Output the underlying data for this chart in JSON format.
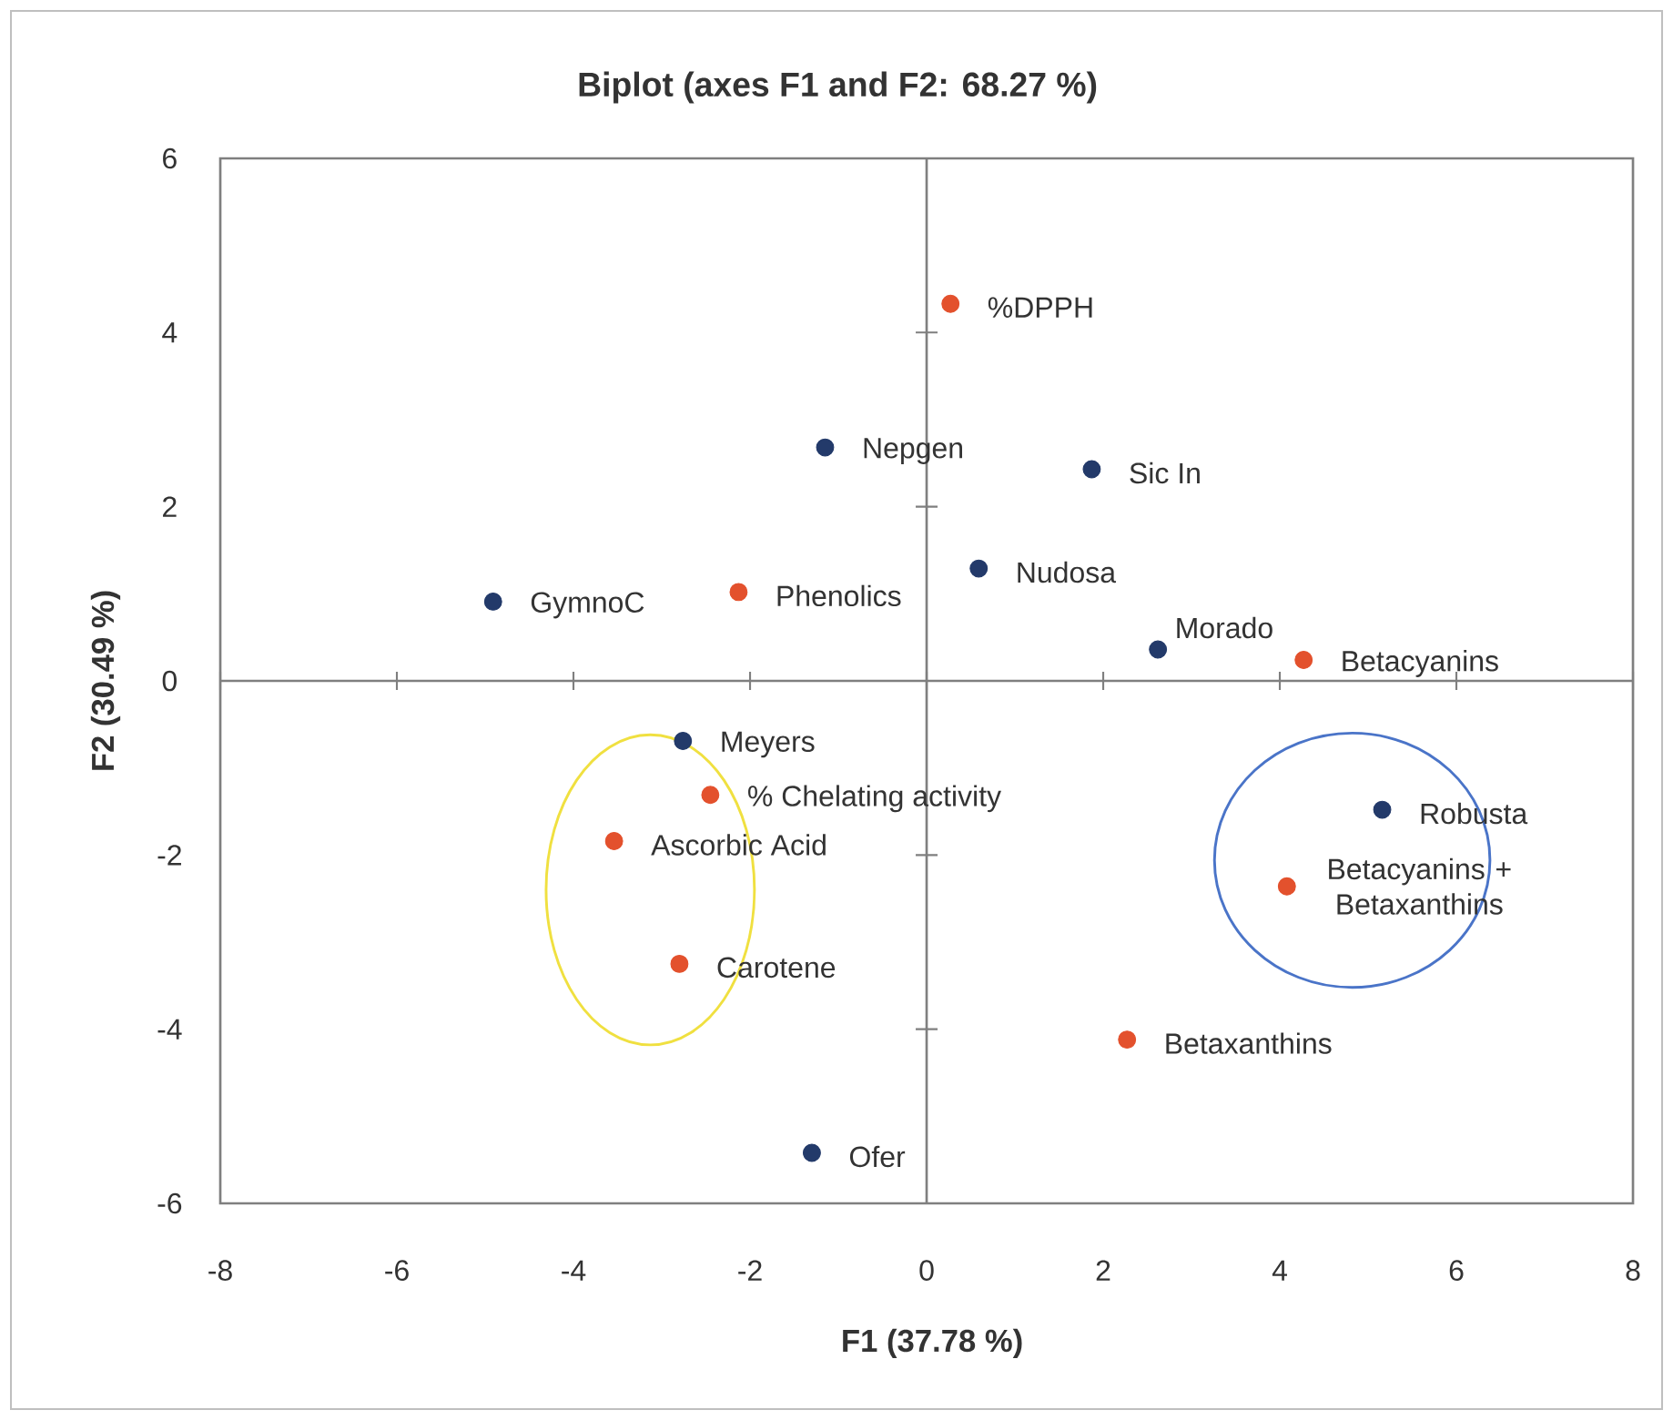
{
  "chart_data": {
    "type": "scatter",
    "title": "Biplot (axes F1 and F2: 68.27 %)",
    "xlabel": "F1 (37.78 %)",
    "ylabel": "F2 (30.49 %)",
    "series": [
      {
        "color": "#233a6a",
        "x": [
          -4.91,
          -1.15,
          1.87,
          0.59,
          2.62,
          -2.76,
          5.16,
          -1.3
        ],
        "values": [
          0.91,
          2.68,
          2.43,
          1.29,
          0.36,
          -0.69,
          -1.48,
          -5.42
        ]
      },
      {
        "color": "#e3512d",
        "x": [
          0.27,
          -2.13,
          4.27,
          -2.45,
          -3.54,
          -2.8,
          4.08,
          2.27
        ],
        "values": [
          4.33,
          1.02,
          0.24,
          -1.31,
          -1.84,
          -3.25,
          -2.36,
          -4.12
        ]
      }
    ],
    "annotations": [
      {
        "text": "GymnoC",
        "x": -4.91,
        "y": 0.91
      },
      {
        "text": "Nepgen",
        "x": -1.15,
        "y": 2.68
      },
      {
        "text": "Sic In",
        "x": 1.87,
        "y": 2.43
      },
      {
        "text": "Nudosa",
        "x": 0.59,
        "y": 1.29
      },
      {
        "text": "Morado",
        "x": 2.62,
        "y": 0.36
      },
      {
        "text": "Meyers",
        "x": -2.76,
        "y": -0.69
      },
      {
        "text": "Robusta",
        "x": 5.16,
        "y": -1.48
      },
      {
        "text": "Ofer",
        "x": -1.3,
        "y": -5.42
      },
      {
        "text": "%DPPH",
        "x": 0.27,
        "y": 4.33
      },
      {
        "text": "Phenolics",
        "x": -2.13,
        "y": 1.02
      },
      {
        "text": "Betacyanins",
        "x": 4.27,
        "y": 0.24
      },
      {
        "text": "% Chelating activity",
        "x": -2.45,
        "y": -1.31
      },
      {
        "text": "Ascorbic Acid",
        "x": -3.54,
        "y": -1.84
      },
      {
        "text": "Carotene",
        "x": -2.8,
        "y": -3.25
      },
      {
        "text": "Betacyanins + Betaxanthins",
        "x": 4.08,
        "y": -2.36
      },
      {
        "text": "Betaxanthins",
        "x": 2.27,
        "y": -4.12
      }
    ],
    "xlim": [
      -8,
      8
    ],
    "ylim": [
      -6,
      6
    ],
    "xticks": [
      -8,
      -6,
      -4,
      -2,
      0,
      2,
      4,
      6,
      8
    ],
    "yticks": [
      -6,
      -4,
      -2,
      0,
      2,
      4,
      6
    ],
    "marker": "circle"
  }
}
